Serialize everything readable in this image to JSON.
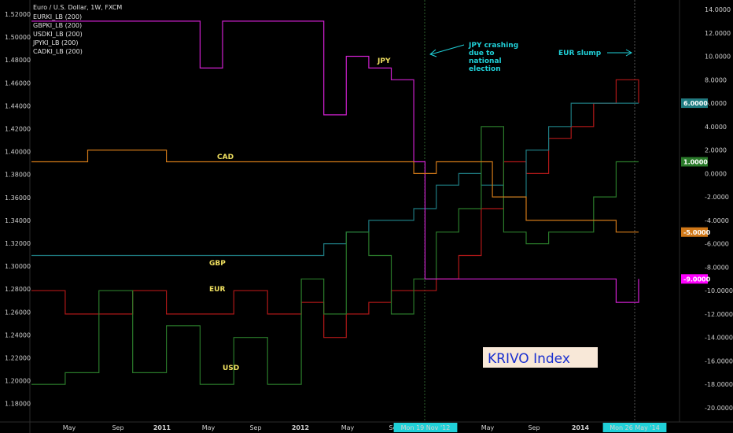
{
  "chart_data": {
    "type": "line",
    "title": "Euro / U.S. Dollar, 1W, FXCM",
    "legend": [
      "EURKI_LB (200)",
      "GBPKI_LB (200)",
      "USDKI_LB (200)",
      "JPYKI_LB (200)",
      "CADKI_LB (200)"
    ],
    "y_left_ticks": [
      "1.52000",
      "1.50000",
      "1.48000",
      "1.46000",
      "1.44000",
      "1.42000",
      "1.40000",
      "1.38000",
      "1.36000",
      "1.34000",
      "1.32000",
      "1.30000",
      "1.28000",
      "1.26000",
      "1.24000",
      "1.22000",
      "1.20000",
      "1.18000"
    ],
    "y_right_ticks": [
      "14.0000",
      "12.0000",
      "10.0000",
      "8.0000",
      "6.0000",
      "4.0000",
      "2.0000",
      "0.0000",
      "-2.0000",
      "-4.0000",
      "-6.0000",
      "-8.0000",
      "-10.0000",
      "-12.0000",
      "-14.0000",
      "-16.0000",
      "-18.0000",
      "-20.0000"
    ],
    "y_right_range": [
      -20,
      14
    ],
    "x_ticks": [
      "May",
      "Sep",
      "2011",
      "May",
      "Sep",
      "2012",
      "May",
      "Sep",
      "Mon 19 Nov '12",
      "May",
      "Sep",
      "2014",
      "Mon 26 May '14"
    ],
    "x_range": [
      "2010-01",
      "2014-07"
    ],
    "series_labels": [
      "JPY",
      "CAD",
      "GBP",
      "EUR",
      "USD"
    ],
    "series": [
      {
        "name": "EURKI_LB (200)",
        "label": "EUR",
        "color": "#b01818",
        "last_value": "6.0000",
        "x": [
          "2010-01",
          "2010-04",
          "2010-07",
          "2010-10",
          "2011-01",
          "2011-04",
          "2011-07",
          "2011-10",
          "2012-01",
          "2012-03",
          "2012-05",
          "2012-07",
          "2012-09",
          "2012-11",
          "2013-01",
          "2013-03",
          "2013-05",
          "2013-07",
          "2013-09",
          "2013-11",
          "2014-01",
          "2014-03",
          "2014-05",
          "2014-07"
        ],
        "values": [
          -10,
          -12,
          -12,
          -10,
          -12,
          -12,
          -10,
          -12,
          -11,
          -14,
          -12,
          -11,
          -10,
          -10,
          -9,
          -7,
          -3,
          1,
          0,
          3,
          4,
          6,
          8,
          6
        ]
      },
      {
        "name": "GBPKI_LB (200)",
        "label": "GBP",
        "color": "#1e7a80",
        "last_value": "6.0000",
        "x": [
          "2010-01",
          "2010-06",
          "2011-01",
          "2011-06",
          "2012-01",
          "2012-03",
          "2012-05",
          "2012-07",
          "2012-09",
          "2012-11",
          "2013-01",
          "2013-03",
          "2013-05",
          "2013-07",
          "2013-09",
          "2013-11",
          "2014-01",
          "2014-03",
          "2014-05",
          "2014-07"
        ],
        "values": [
          -7,
          -7,
          -7,
          -7,
          -7,
          -6,
          -5,
          -4,
          -4,
          -3,
          -1,
          0,
          -1,
          -2,
          2,
          4,
          6,
          6,
          6,
          6
        ]
      },
      {
        "name": "USDKI_LB (200)",
        "label": "USD",
        "color": "#2a7a2a",
        "last_value": "1.0000",
        "x": [
          "2010-01",
          "2010-04",
          "2010-07",
          "2010-10",
          "2011-01",
          "2011-04",
          "2011-07",
          "2011-10",
          "2012-01",
          "2012-03",
          "2012-05",
          "2012-07",
          "2012-09",
          "2012-11",
          "2013-01",
          "2013-03",
          "2013-05",
          "2013-07",
          "2013-09",
          "2013-11",
          "2014-01",
          "2014-03",
          "2014-05",
          "2014-07"
        ],
        "values": [
          -18,
          -17,
          -10,
          -17,
          -13,
          -18,
          -14,
          -18,
          -9,
          -12,
          -5,
          -7,
          -12,
          -9,
          -5,
          -3,
          4,
          -5,
          -6,
          -5,
          -5,
          -2,
          1,
          1
        ]
      },
      {
        "name": "JPYKI_LB (200)",
        "label": "JPY",
        "color": "#d020d0",
        "last_value": "-9.0000",
        "x": [
          "2010-01",
          "2010-06",
          "2011-01",
          "2011-04",
          "2011-06",
          "2011-09",
          "2012-01",
          "2012-03",
          "2012-05",
          "2012-07",
          "2012-09",
          "2012-11",
          "2012-12",
          "2013-03",
          "2013-06",
          "2013-09",
          "2014-01",
          "2014-05",
          "2014-07"
        ],
        "values": [
          13,
          13,
          13,
          9,
          13,
          13,
          13,
          5,
          10,
          9,
          8,
          1,
          -9,
          -9,
          -9,
          -9,
          -9,
          -11,
          -9
        ]
      },
      {
        "name": "CADKI_LB (200)",
        "label": "CAD",
        "color": "#d07818",
        "last_value": "-5.0000",
        "x": [
          "2010-01",
          "2010-06",
          "2011-01",
          "2011-06",
          "2012-01",
          "2012-06",
          "2012-09",
          "2012-11",
          "2013-01",
          "2013-03",
          "2013-06",
          "2013-09",
          "2014-01",
          "2014-05",
          "2014-07"
        ],
        "values": [
          1,
          2,
          1,
          1,
          1,
          1,
          1,
          0,
          1,
          1,
          -2,
          -4,
          -4,
          -5,
          -5
        ]
      }
    ],
    "annotations": [
      {
        "text_lines": [
          "JPY crashing",
          "due to",
          "national",
          "election"
        ]
      },
      {
        "text_lines": [
          "EUR slump"
        ]
      }
    ],
    "inset_label": "KRIVO Index"
  },
  "colors": {
    "background": "#000000",
    "accent": "#20d0d8",
    "label_yellow": "#f0e060",
    "inset_bg": "#f8e8d8",
    "inset_text": "#1a30d0",
    "price_badge": "#ff00ff"
  }
}
